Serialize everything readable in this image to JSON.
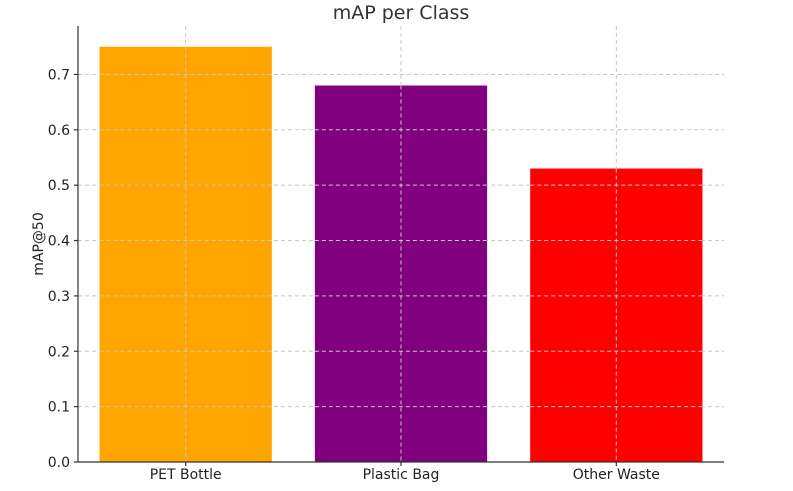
{
  "chart_data": {
    "type": "bar",
    "title": "mAP per Class",
    "xlabel": "",
    "ylabel": "mAP@50",
    "categories": [
      "PET Bottle",
      "Plastic Bag",
      "Other Waste"
    ],
    "values": [
      0.75,
      0.68,
      0.53
    ],
    "colors": [
      "#FFA500",
      "#800080",
      "#FF0000"
    ],
    "ylim": [
      0,
      0.7875
    ],
    "yticks": [
      "0.0",
      "0.1",
      "0.2",
      "0.3",
      "0.4",
      "0.5",
      "0.6",
      "0.7"
    ],
    "grid": true
  }
}
